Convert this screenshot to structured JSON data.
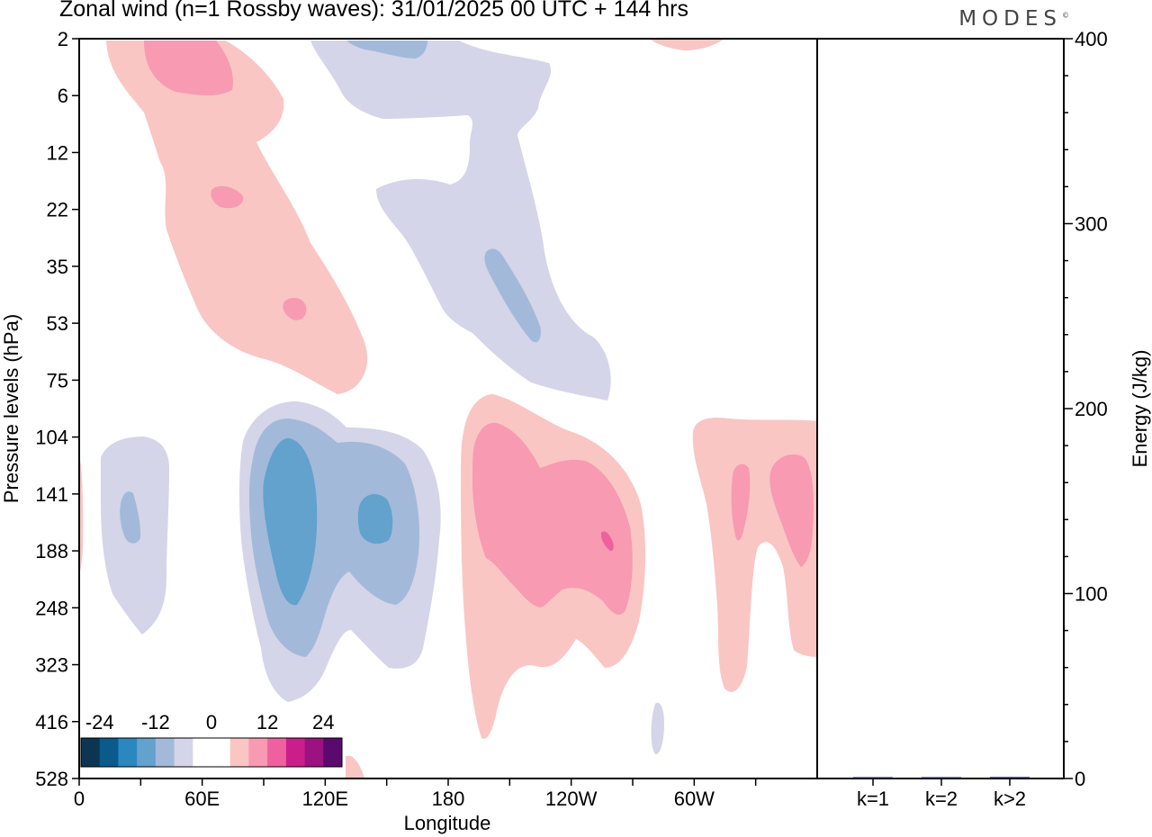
{
  "header": {
    "title": "Zonal wind (n=1 Rossby waves):  31/01/2025  00 UTC  + 144 hrs",
    "logo": "MODES",
    "logo_mark": "©"
  },
  "chart_data": [
    {
      "type": "contour",
      "title": "Zonal wind (n=1 Rossby waves):  31/01/2025  00 UTC  + 144 hrs",
      "xlabel": "Longitude",
      "ylabel": "Pressure levels (hPa)",
      "x_ticks": [
        "0",
        "60E",
        "120E",
        "180",
        "120W",
        "60W"
      ],
      "x_range_deg": [
        0,
        360
      ],
      "y_ticks": [
        "2",
        "6",
        "12",
        "22",
        "35",
        "53",
        "75",
        "104",
        "141",
        "188",
        "248",
        "323",
        "416",
        "528"
      ],
      "y_scale": "model levels (non-linear)",
      "colorbar": {
        "labels": [
          "-24",
          "-12",
          "0",
          "12",
          "24"
        ],
        "colors": [
          "#0b3550",
          "#0a5a8c",
          "#2a87c0",
          "#62a2cd",
          "#a3b9da",
          "#d4d5e8",
          "#ffffff",
          "#ffffff",
          "#f9c6c4",
          "#f79ab2",
          "#ef619e",
          "#cc1e8a",
          "#9b1380",
          "#5a0a6e"
        ],
        "placement": "bottom-left"
      }
    },
    {
      "type": "bar",
      "ylabel": "Energy (J/kg)",
      "categories": [
        "k=1",
        "k=2",
        "k>2"
      ],
      "values": [
        0.5,
        0.3,
        0.8
      ],
      "ylim": [
        0,
        400
      ],
      "y_ticks": [
        "0",
        "100",
        "200",
        "300",
        "400"
      ],
      "bar_color": "#0a1a60"
    }
  ]
}
